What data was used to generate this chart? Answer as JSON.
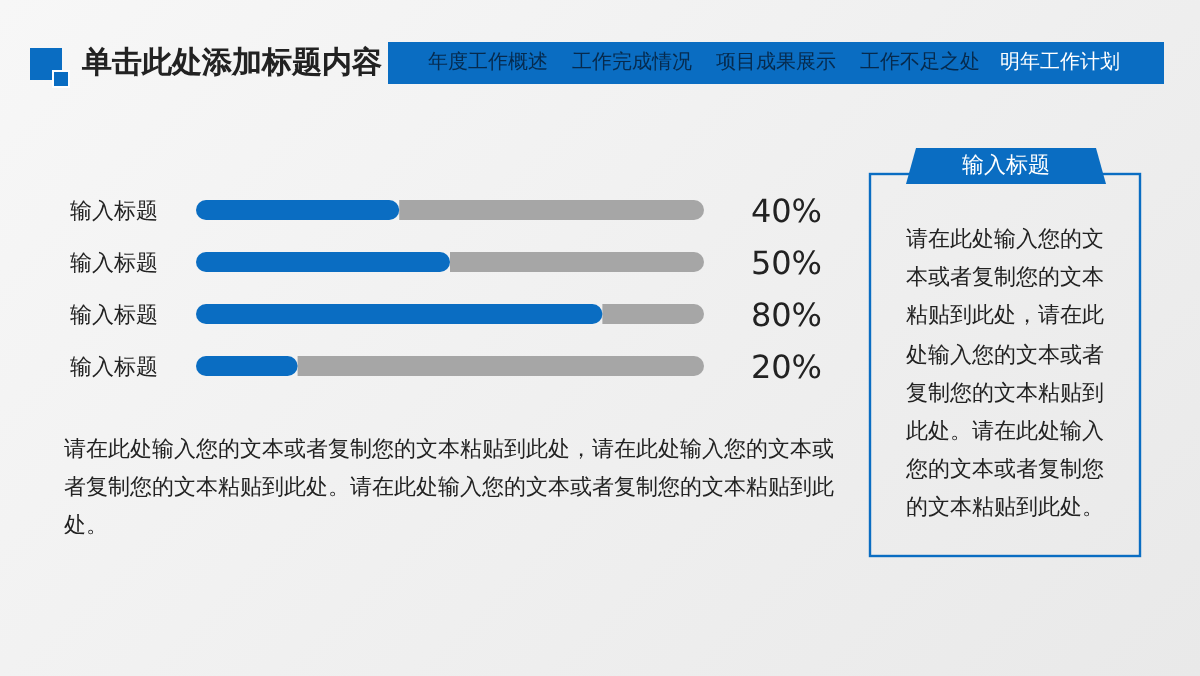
{
  "chart_data": {
    "type": "bar",
    "orientation": "horizontal",
    "stacked": true,
    "title": "单击此处添加标题内容",
    "categories": [
      "输入标题",
      "输入标题",
      "输入标题",
      "输入标题"
    ],
    "series": [
      {
        "color": "#0a6dc2",
        "values": [
          40,
          50,
          80,
          20
        ],
        "value_labels": [
          "40%",
          "50%",
          "80%",
          "20%"
        ]
      },
      {
        "color": "#a6a6a6",
        "values": [
          60,
          50,
          20,
          80
        ]
      }
    ],
    "annotations": [
      "年度工作概述",
      "工作完成情况",
      "项目成果展示",
      "工作不足之处",
      "明年工作计划",
      "请在此处输入您的文本或者复制您的文本粘贴到此处，请在此处输入您的文本或者复制您的文本粘贴到此处。请在此处输入您的文本或者复制您的文本粘贴到此处。",
      "输入标题",
      "请在此处输入您的文本或者复制您的文本粘贴到此处，请在此处输入您的文本或者复制您的文本粘贴到此处。请在此处输入您的文本或者复制您的文本粘贴到此处。"
    ]
  }
}
